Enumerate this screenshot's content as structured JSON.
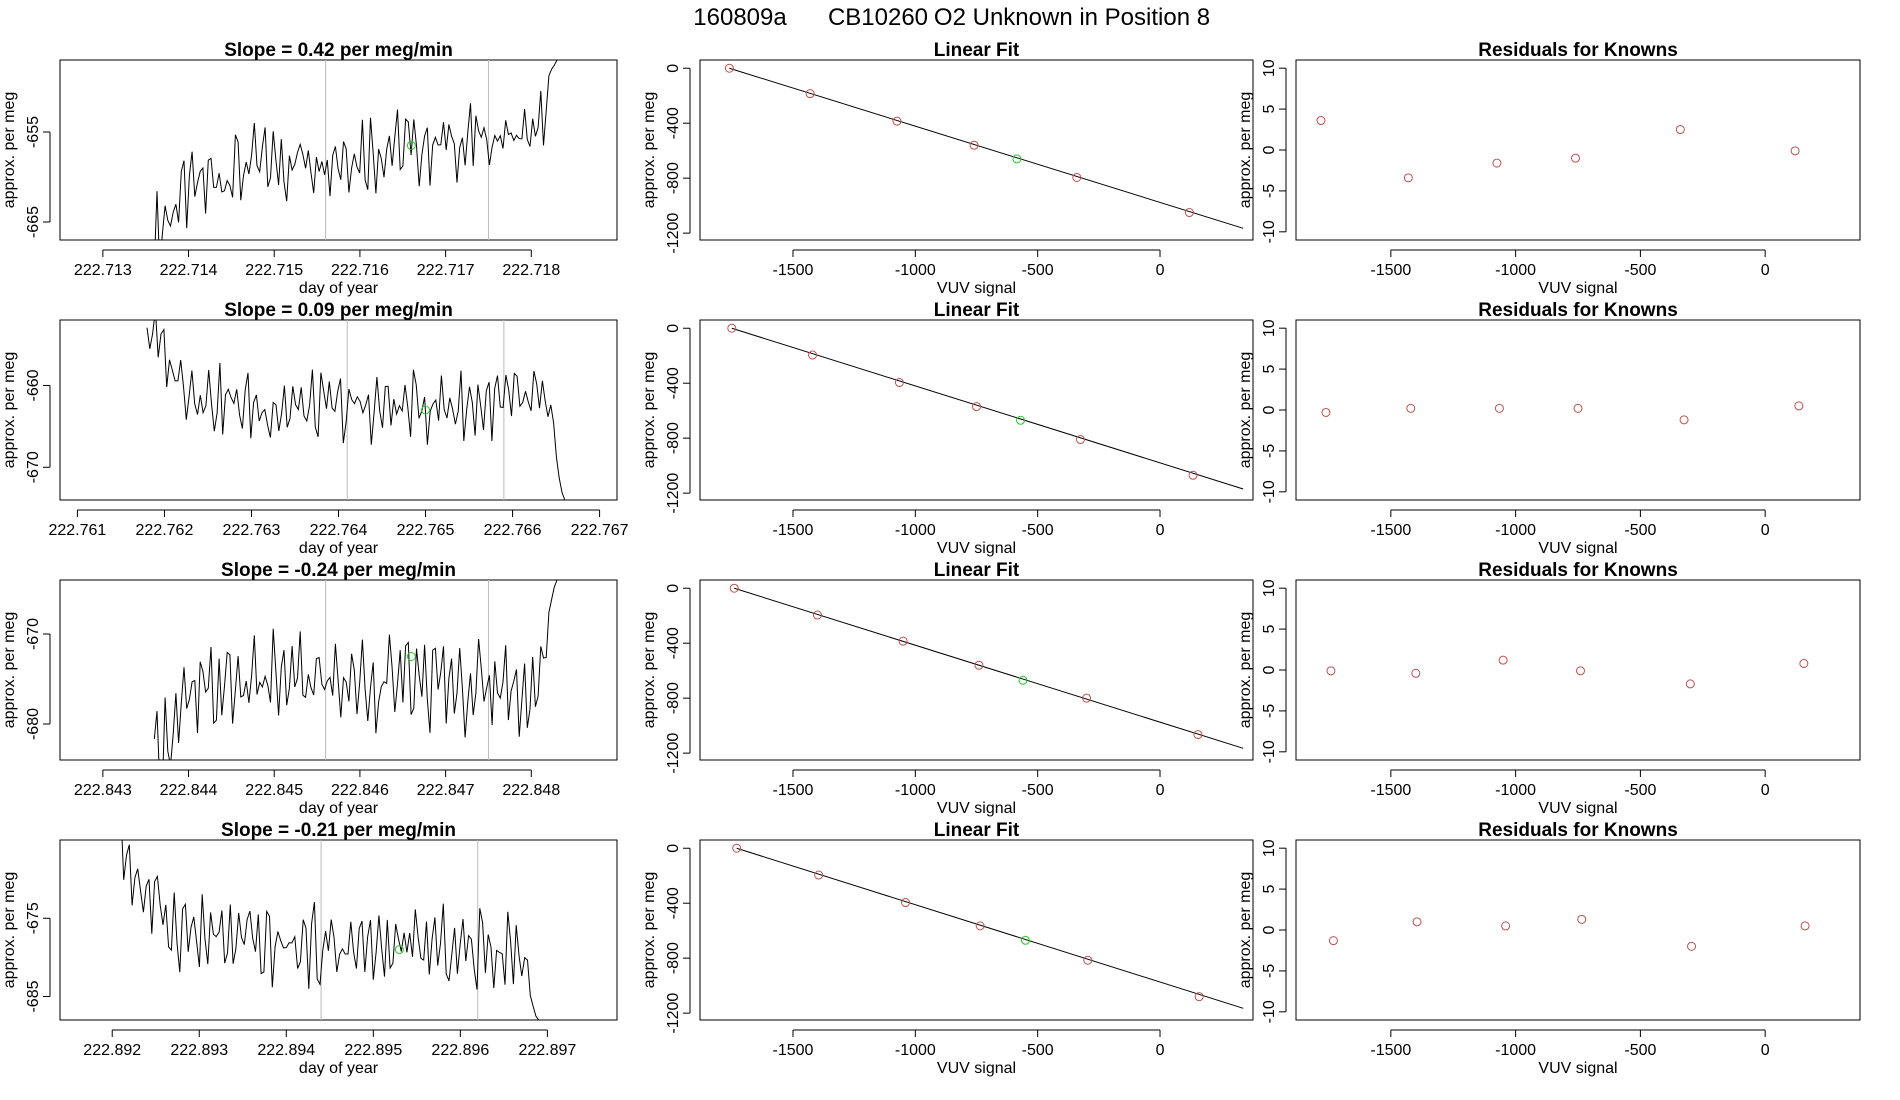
{
  "figure": {
    "title_run": "160809a",
    "title_tank": "CB10260",
    "title_desc": "O2 Unknown in Position  8"
  },
  "colors": {
    "line": "#000000",
    "known": "#c0504d",
    "unknown": "#22cc22",
    "vline": "#bbbbbb"
  },
  "chart_data": [
    {
      "type": "line",
      "row": 1,
      "panel": "timeseries",
      "title": "Slope =  0.42  per meg/min",
      "xlabel": "day of year",
      "ylabel": "approx. per meg",
      "xlim": [
        222.7125,
        222.719
      ],
      "ylim": [
        -667,
        -647
      ],
      "xticks": [
        222.713,
        222.714,
        222.715,
        222.716,
        222.717,
        222.718
      ],
      "xtick_labels": [
        "222.713",
        "222.714",
        "222.715",
        "222.716",
        "222.717",
        "222.718"
      ],
      "yticks": [
        -655,
        -665
      ],
      "ytick_labels": [
        "-655",
        "-665"
      ],
      "x_start": 222.7136,
      "x_end": 222.7183,
      "rise_to": -647,
      "base_start": -667,
      "base_mid": -659.5,
      "base_end": -655,
      "amplitude": 3.5,
      "vlines": [
        222.7156,
        222.7175
      ],
      "unknown_point": {
        "x": 222.7166,
        "y": -656.5
      }
    },
    {
      "type": "scatter",
      "row": 1,
      "panel": "fit",
      "title": "Linear Fit",
      "xlabel": "VUV signal",
      "ylabel": "approx. per meg",
      "xlim": [
        -1880,
        380
      ],
      "ylim": [
        -1250,
        60
      ],
      "xticks": [
        -1500,
        -1000,
        -500,
        0
      ],
      "xtick_labels": [
        "-1500",
        "-1000",
        "-500",
        "0"
      ],
      "yticks": [
        0,
        -400,
        -800,
        -1200
      ],
      "ytick_labels": [
        "0",
        "-400",
        "-800",
        "-1200"
      ],
      "line": {
        "x0": -1760,
        "y0": 0,
        "x1": 340,
        "y1": -1165
      },
      "known_points": [
        [
          -1760,
          0
        ],
        [
          -1430,
          -185
        ],
        [
          -1075,
          -385
        ],
        [
          -760,
          -560
        ],
        [
          -340,
          -795
        ],
        [
          120,
          -1050
        ]
      ],
      "unknown_point": [
        -585,
        -660
      ]
    },
    {
      "type": "scatter",
      "row": 1,
      "panel": "residuals",
      "title": "Residuals for Knowns",
      "xlabel": "VUV signal",
      "ylabel": "approx. per meg",
      "xlim": [
        -1880,
        380
      ],
      "ylim": [
        -11,
        11
      ],
      "xticks": [
        -1500,
        -1000,
        -500,
        0
      ],
      "xtick_labels": [
        "-1500",
        "-1000",
        "-500",
        "0"
      ],
      "yticks": [
        10,
        5,
        0,
        -5,
        -10
      ],
      "ytick_labels": [
        "10",
        "5",
        "0",
        "-5",
        "-10"
      ],
      "points": [
        [
          -1780,
          3.6
        ],
        [
          -1430,
          -3.4
        ],
        [
          -1075,
          -1.6
        ],
        [
          -760,
          -1.0
        ],
        [
          -340,
          2.5
        ],
        [
          120,
          -0.1
        ]
      ]
    },
    {
      "type": "line",
      "row": 2,
      "panel": "timeseries",
      "title": "Slope =  0.09  per meg/min",
      "xlabel": "day of year",
      "ylabel": "approx. per meg",
      "xlim": [
        222.7608,
        222.7672
      ],
      "ylim": [
        -674,
        -652
      ],
      "xticks": [
        222.761,
        222.762,
        222.763,
        222.764,
        222.765,
        222.766,
        222.767
      ],
      "xtick_labels": [
        "222.761",
        "222.762",
        "222.763",
        "222.764",
        "222.765",
        "222.766",
        "222.767"
      ],
      "yticks": [
        -660,
        -670
      ],
      "ytick_labels": [
        "-660",
        "-670"
      ],
      "x_start": 222.7618,
      "x_end": 222.7666,
      "drop_to": -674,
      "base_start": -652,
      "base_mid": -663.5,
      "base_end": -662,
      "amplitude": 3.2,
      "vlines": [
        222.7641,
        222.7659
      ],
      "unknown_point": {
        "x": 222.765,
        "y": -663
      }
    },
    {
      "type": "scatter",
      "row": 2,
      "panel": "fit",
      "title": "Linear Fit",
      "xlabel": "VUV signal",
      "ylabel": "approx. per meg",
      "xlim": [
        -1880,
        380
      ],
      "ylim": [
        -1250,
        60
      ],
      "xticks": [
        -1500,
        -1000,
        -500,
        0
      ],
      "xtick_labels": [
        "-1500",
        "-1000",
        "-500",
        "0"
      ],
      "yticks": [
        0,
        -400,
        -800,
        -1200
      ],
      "ytick_labels": [
        "0",
        "-400",
        "-800",
        "-1200"
      ],
      "line": {
        "x0": -1750,
        "y0": 0,
        "x1": 340,
        "y1": -1170
      },
      "known_points": [
        [
          -1750,
          0
        ],
        [
          -1420,
          -195
        ],
        [
          -1065,
          -395
        ],
        [
          -750,
          -570
        ],
        [
          -325,
          -810
        ],
        [
          135,
          -1070
        ]
      ],
      "unknown_point": [
        -570,
        -670
      ]
    },
    {
      "type": "scatter",
      "row": 2,
      "panel": "residuals",
      "title": "Residuals for Knowns",
      "xlabel": "VUV signal",
      "ylabel": "approx. per meg",
      "xlim": [
        -1880,
        380
      ],
      "ylim": [
        -11,
        11
      ],
      "xticks": [
        -1500,
        -1000,
        -500,
        0
      ],
      "xtick_labels": [
        "-1500",
        "-1000",
        "-500",
        "0"
      ],
      "yticks": [
        10,
        5,
        0,
        -5,
        -10
      ],
      "ytick_labels": [
        "10",
        "5",
        "0",
        "-5",
        "-10"
      ],
      "points": [
        [
          -1760,
          -0.3
        ],
        [
          -1420,
          0.2
        ],
        [
          -1065,
          0.2
        ],
        [
          -750,
          0.2
        ],
        [
          -325,
          -1.2
        ],
        [
          135,
          0.5
        ]
      ]
    },
    {
      "type": "line",
      "row": 3,
      "panel": "timeseries",
      "title": "Slope =  -0.24  per meg/min",
      "xlabel": "day of year",
      "ylabel": "approx. per meg",
      "xlim": [
        222.8425,
        222.849
      ],
      "ylim": [
        -684,
        -664
      ],
      "xticks": [
        222.843,
        222.844,
        222.845,
        222.846,
        222.847,
        222.848
      ],
      "xtick_labels": [
        "222.843",
        "222.844",
        "222.845",
        "222.846",
        "222.847",
        "222.848"
      ],
      "yticks": [
        -670,
        -680
      ],
      "ytick_labels": [
        "-670",
        "-680"
      ],
      "x_start": 222.8436,
      "x_end": 222.8483,
      "rise_to": -664,
      "base_start": -684,
      "base_mid": -674.5,
      "base_end": -676,
      "amplitude": 3.8,
      "vlines": [
        222.8456,
        222.8475
      ],
      "unknown_point": {
        "x": 222.8466,
        "y": -672.5
      }
    },
    {
      "type": "scatter",
      "row": 3,
      "panel": "fit",
      "title": "Linear Fit",
      "xlabel": "VUV signal",
      "ylabel": "approx. per meg",
      "xlim": [
        -1880,
        380
      ],
      "ylim": [
        -1250,
        60
      ],
      "xticks": [
        -1500,
        -1000,
        -500,
        0
      ],
      "xtick_labels": [
        "-1500",
        "-1000",
        "-500",
        "0"
      ],
      "yticks": [
        0,
        -400,
        -800,
        -1200
      ],
      "ytick_labels": [
        "0",
        "-400",
        "-800",
        "-1200"
      ],
      "line": {
        "x0": -1740,
        "y0": 0,
        "x1": 340,
        "y1": -1165
      },
      "known_points": [
        [
          -1740,
          0
        ],
        [
          -1400,
          -195
        ],
        [
          -1050,
          -385
        ],
        [
          -740,
          -560
        ],
        [
          -300,
          -800
        ],
        [
          155,
          -1065
        ]
      ],
      "unknown_point": [
        -560,
        -670
      ]
    },
    {
      "type": "scatter",
      "row": 3,
      "panel": "residuals",
      "title": "Residuals for Knowns",
      "xlabel": "VUV signal",
      "ylabel": "approx. per meg",
      "xlim": [
        -1880,
        380
      ],
      "ylim": [
        -11,
        11
      ],
      "xticks": [
        -1500,
        -1000,
        -500,
        0
      ],
      "xtick_labels": [
        "-1500",
        "-1000",
        "-500",
        "0"
      ],
      "yticks": [
        10,
        5,
        0,
        -5,
        -10
      ],
      "ytick_labels": [
        "10",
        "5",
        "0",
        "-5",
        "-10"
      ],
      "points": [
        [
          -1740,
          -0.1
        ],
        [
          -1400,
          -0.4
        ],
        [
          -1050,
          1.2
        ],
        [
          -740,
          -0.1
        ],
        [
          -300,
          -1.7
        ],
        [
          155,
          0.8
        ]
      ]
    },
    {
      "type": "line",
      "row": 4,
      "panel": "timeseries",
      "title": "Slope =  -0.21  per meg/min",
      "xlabel": "day of year",
      "ylabel": "approx. per meg",
      "xlim": [
        222.8914,
        222.8978
      ],
      "ylim": [
        -688,
        -665
      ],
      "xticks": [
        222.892,
        222.893,
        222.894,
        222.895,
        222.896,
        222.897
      ],
      "xtick_labels": [
        "222.892",
        "222.893",
        "222.894",
        "222.895",
        "222.896",
        "222.897"
      ],
      "yticks": [
        -675,
        -685
      ],
      "ytick_labels": [
        "-675",
        "-685"
      ],
      "x_start": 222.8921,
      "x_end": 222.8969,
      "drop_to": -688,
      "base_start": -665,
      "base_mid": -678.5,
      "base_end": -679,
      "amplitude": 3.8,
      "vlines": [
        222.8944,
        222.8962
      ],
      "unknown_point": {
        "x": 222.8953,
        "y": -679
      }
    },
    {
      "type": "scatter",
      "row": 4,
      "panel": "fit",
      "title": "Linear Fit",
      "xlabel": "VUV signal",
      "ylabel": "approx. per meg",
      "xlim": [
        -1880,
        380
      ],
      "ylim": [
        -1250,
        60
      ],
      "xticks": [
        -1500,
        -1000,
        -500,
        0
      ],
      "xtick_labels": [
        "-1500",
        "-1000",
        "-500",
        "0"
      ],
      "yticks": [
        0,
        -400,
        -800,
        -1200
      ],
      "ytick_labels": [
        "0",
        "-400",
        "-800",
        "-1200"
      ],
      "line": {
        "x0": -1730,
        "y0": 0,
        "x1": 340,
        "y1": -1165
      },
      "known_points": [
        [
          -1730,
          0
        ],
        [
          -1395,
          -195
        ],
        [
          -1040,
          -395
        ],
        [
          -735,
          -565
        ],
        [
          -295,
          -815
        ],
        [
          160,
          -1080
        ]
      ],
      "unknown_point": [
        -550,
        -670
      ]
    },
    {
      "type": "scatter",
      "row": 4,
      "panel": "residuals",
      "title": "Residuals for Knowns",
      "xlabel": "VUV signal",
      "ylabel": "approx. per meg",
      "xlim": [
        -1880,
        380
      ],
      "ylim": [
        -11,
        11
      ],
      "xticks": [
        -1500,
        -1000,
        -500,
        0
      ],
      "xtick_labels": [
        "-1500",
        "-1000",
        "-500",
        "0"
      ],
      "yticks": [
        10,
        5,
        0,
        -5,
        -10
      ],
      "ytick_labels": [
        "10",
        "5",
        "0",
        "-5",
        "-10"
      ],
      "points": [
        [
          -1730,
          -1.3
        ],
        [
          -1395,
          1.0
        ],
        [
          -1040,
          0.5
        ],
        [
          -735,
          1.3
        ],
        [
          -295,
          -2.0
        ],
        [
          160,
          0.5
        ]
      ]
    }
  ]
}
